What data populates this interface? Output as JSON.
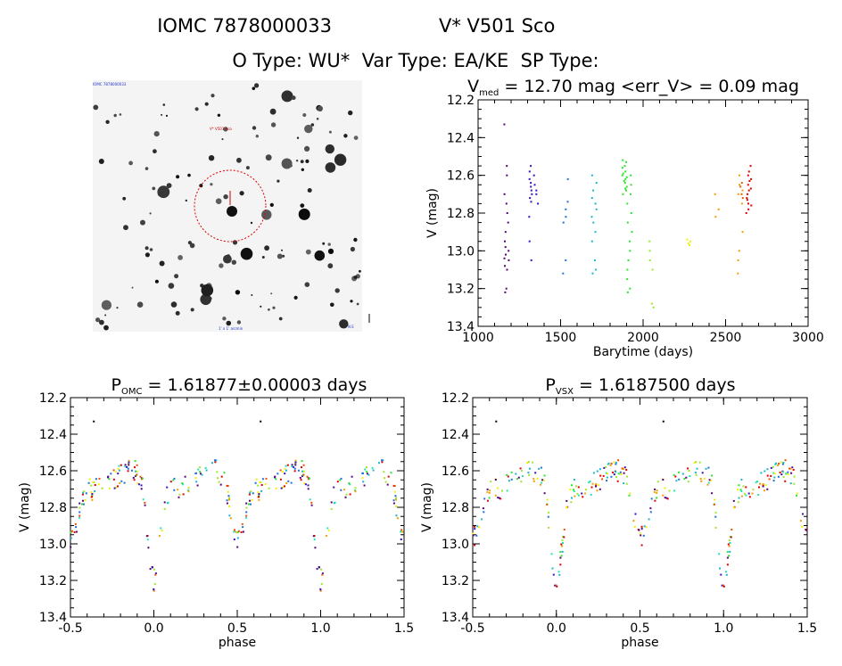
{
  "header": {
    "line1_left": "IOMC 7878000033",
    "line1_right": "V* V501 Sco",
    "line2": "O Type: WU*  Var Type: EA/KE  SP Type:"
  },
  "finder": {
    "label_top_left": "IOMC 7878000033",
    "label_center": "V* V501 Sco",
    "label_bottom": "1' x 1' arcmin",
    "label_bottom_right": "N E"
  },
  "colors": [
    "#000000",
    "#5a007a",
    "#3a10c0",
    "#1e6edc",
    "#19b4d2",
    "#1ee6b4",
    "#28e628",
    "#a0e628",
    "#f0f000",
    "#f0a000",
    "#f05000",
    "#e00000"
  ],
  "chart_data": [
    {
      "type": "scatter",
      "title_main": "V",
      "title_sub": "med",
      "title_rest": " = 12.70 mag <err_V> = 0.09 mag",
      "xlabel": "Barytime (days)",
      "ylabel": "V (mag)",
      "xlim": [
        1000,
        3000
      ],
      "ylim": [
        13.4,
        12.2
      ],
      "y_inverted": true,
      "xticks": [
        "1000",
        "1500",
        "2000",
        "2500",
        "3000"
      ],
      "yticks": [
        "12.2",
        "12.4",
        "12.6",
        "12.8",
        "13.0",
        "13.2",
        "13.4"
      ],
      "clusters": [
        {
          "x": 1175,
          "color_index": 1,
          "y": [
            12.33,
            12.55,
            12.6,
            12.7,
            12.8,
            12.9,
            12.95,
            13.0,
            13.02,
            13.05,
            13.08,
            13.1,
            13.2,
            13.22,
            12.75,
            12.85,
            13.04,
            12.98
          ]
        },
        {
          "x": 1320,
          "color_index": 2,
          "y": [
            12.55,
            12.62,
            12.66,
            12.7,
            12.74,
            12.82,
            12.95,
            13.05,
            12.68,
            12.64,
            12.72,
            12.58
          ]
        },
        {
          "x": 1350,
          "color_index": 2,
          "y": [
            12.65,
            12.7,
            12.75,
            12.6,
            12.68
          ]
        },
        {
          "x": 1530,
          "color_index": 3,
          "y": [
            12.62,
            12.78,
            12.82,
            12.85,
            13.05,
            13.12,
            12.74
          ]
        },
        {
          "x": 1705,
          "color_index": 4,
          "y": [
            12.6,
            12.68,
            12.72,
            12.78,
            12.82,
            12.85,
            12.9,
            12.95,
            13.05,
            13.1,
            13.12,
            12.75,
            12.64
          ]
        },
        {
          "x": 1890,
          "color_index": 6,
          "y": [
            12.52,
            12.55,
            12.58,
            12.6,
            12.62,
            12.64,
            12.66,
            12.68,
            12.7,
            12.56,
            12.63,
            12.61,
            12.59,
            12.67,
            12.53
          ]
        },
        {
          "x": 1920,
          "color_index": 6,
          "y": [
            12.6,
            12.7,
            12.8,
            12.9,
            13.0,
            13.1,
            13.2,
            13.22,
            12.75,
            12.85,
            12.95,
            13.05,
            12.65,
            13.15
          ]
        },
        {
          "x": 2055,
          "color_index": 7,
          "y": [
            12.95,
            13.0,
            13.05,
            13.1,
            13.28,
            13.3
          ]
        },
        {
          "x": 2275,
          "color_index": 8,
          "y": [
            12.95,
            12.96,
            12.97,
            12.94
          ]
        },
        {
          "x": 2450,
          "color_index": 9,
          "y": [
            12.7,
            12.78,
            12.82
          ]
        },
        {
          "x": 2590,
          "color_index": 9,
          "y": [
            12.65,
            12.7,
            12.75,
            12.9,
            13.0,
            13.05,
            13.12,
            12.6,
            12.68
          ]
        },
        {
          "x": 2600,
          "color_index": 10,
          "y": [
            12.64,
            12.66,
            12.7,
            12.72
          ]
        },
        {
          "x": 2640,
          "color_index": 11,
          "y": [
            12.55,
            12.6,
            12.62,
            12.65,
            12.68,
            12.7,
            12.72,
            12.75,
            12.78,
            12.8,
            12.63,
            12.67,
            12.73,
            12.58,
            12.76
          ]
        }
      ]
    },
    {
      "type": "scatter",
      "title_main": "P",
      "title_sub": "OMC",
      "title_rest": " = 1.61877±0.00003 days",
      "xlabel": "phase",
      "ylabel": "V (mag)",
      "xlim": [
        -0.5,
        1.5
      ],
      "ylim": [
        13.4,
        12.2
      ],
      "y_inverted": true,
      "xticks": [
        "-0.5",
        "0.0",
        "0.5",
        "1.0",
        "1.5"
      ],
      "yticks": [
        "12.2",
        "12.4",
        "12.6",
        "12.8",
        "13.0",
        "13.2",
        "13.4"
      ]
    },
    {
      "type": "scatter",
      "title_main": "P",
      "title_sub": "VSX",
      "title_rest": " = 1.6187500 days",
      "xlabel": "phase",
      "ylabel": "V (mag)",
      "xlim": [
        -0.5,
        1.5
      ],
      "ylim": [
        13.4,
        12.2
      ],
      "y_inverted": true,
      "xticks": [
        "-0.5",
        "0.0",
        "0.5",
        "1.0",
        "1.5"
      ],
      "yticks": [
        "12.2",
        "12.4",
        "12.6",
        "12.8",
        "13.0",
        "13.2",
        "13.4"
      ]
    }
  ]
}
